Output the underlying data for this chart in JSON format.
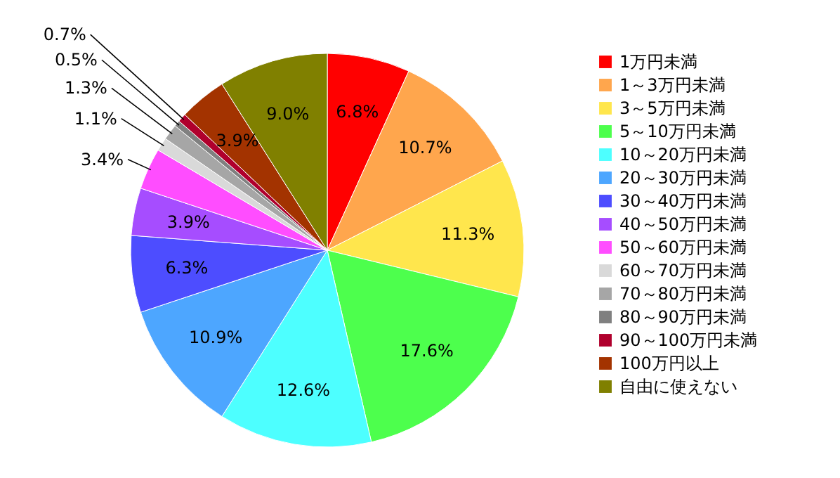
{
  "chart_data": {
    "type": "pie",
    "categories": [
      "1万円未満",
      "1～3万円未満",
      "3～5万円未満",
      "5～10万円未満",
      "10～20万円未満",
      "20～30万円未満",
      "30～40万円未満",
      "40～50万円未満",
      "50～60万円未満",
      "60～70万円未満",
      "70～80万円未満",
      "80～90万円未満",
      "90～100万円未満",
      "100万円以上",
      "自由に使えない"
    ],
    "values": [
      6.8,
      10.7,
      11.3,
      17.6,
      12.6,
      10.9,
      6.3,
      3.9,
      3.4,
      1.1,
      1.3,
      0.5,
      0.7,
      3.9,
      9.0
    ],
    "value_labels": [
      "6.8%",
      "10.7%",
      "11.3%",
      "17.6%",
      "12.6%",
      "10.9%",
      "6.3%",
      "3.9%",
      "3.4%",
      "1.1%",
      "1.3%",
      "0.5%",
      "0.7%",
      "3.9%",
      "9.0%"
    ],
    "colors": [
      "#ff0000",
      "#ffa64d",
      "#ffe64d",
      "#4dff4d",
      "#4dffff",
      "#4da6ff",
      "#4d4dff",
      "#a64dff",
      "#ff4dff",
      "#d9d9d9",
      "#a6a6a6",
      "#808080",
      "#b0002d",
      "#a33300",
      "#808000"
    ],
    "legend": "right"
  }
}
